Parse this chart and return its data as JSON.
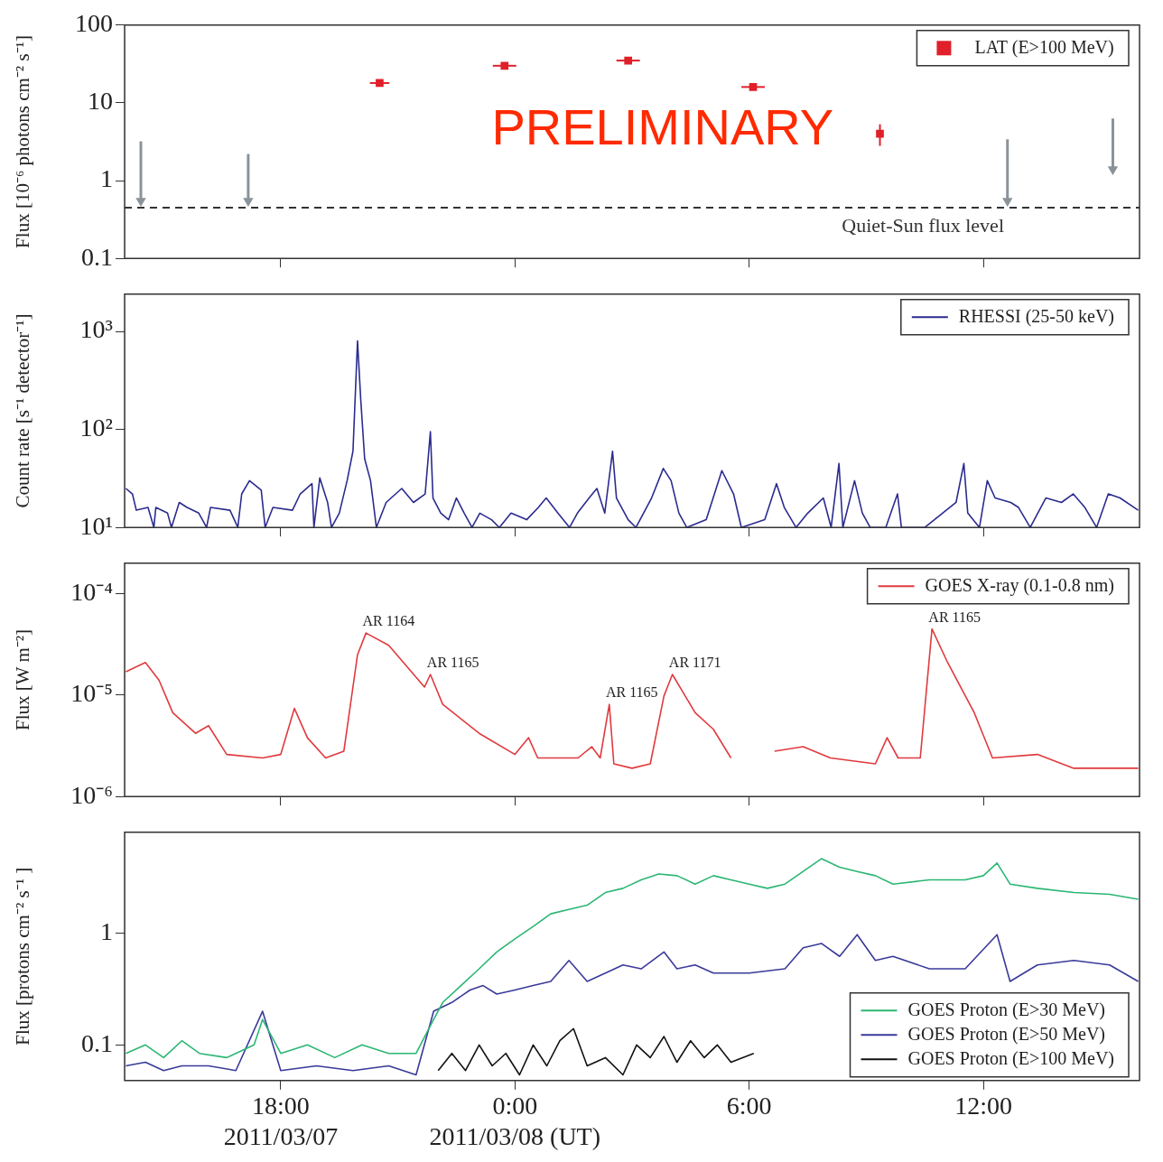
{
  "chart_data": [
    {
      "type": "scatter",
      "ylabel": "Flux [10⁻⁶ photons cm⁻² s⁻¹]",
      "log": "y",
      "xlim": [
        "2011-03-07T14:00",
        "2011-03-08T16:00"
      ],
      "xticks": [
        {
          "value": "2011-03-07T18:00",
          "label": null
        },
        {
          "value": "2011-03-08T00:00",
          "label": null
        },
        {
          "value": "2011-03-08T06:00",
          "label": null
        },
        {
          "value": "2011-03-08T12:00",
          "label": null
        }
      ],
      "ylim": [
        0.1,
        100
      ],
      "yticks": [
        0.1,
        1,
        10,
        100
      ],
      "tick_labels": "y",
      "marker": "square",
      "legend": "top right",
      "annotations": [
        "PRELIMINARY"
      ],
      "ref_lines": [
        {
          "axis": "y",
          "value": 0.45,
          "label": "Quiet-Sun flux level",
          "color": "#333333",
          "line_style": "dashed"
        }
      ],
      "series": [
        {
          "name": "LAT (E>100 MeV)",
          "color": "#e0202a",
          "x": [
            "2011-03-07T20:32",
            "2011-03-07T23:44",
            "2011-03-08T02:54",
            "2011-03-08T06:06",
            "2011-03-08T09:21"
          ],
          "values": [
            18,
            30,
            35,
            16,
            4
          ],
          "xerrors": [
            0.0104,
            0.0125,
            0.0125,
            0.0125,
            null
          ],
          "errors": [
            null,
            null,
            null,
            null,
            [
              2.8,
              5.3
            ]
          ]
        },
        {
          "color": "#8a9399",
          "marker": "triangle",
          "x": [
            "2011-03-07T14:25",
            "2011-03-07T17:10",
            "2011-03-08T12:37",
            "2011-03-08T15:19"
          ],
          "values": [
            0.55,
            0.55,
            0.55,
            1.4
          ],
          "errors": [
            [
              0.55,
              3.2
            ],
            [
              0.55,
              2.2
            ],
            [
              0.55,
              3.4
            ],
            [
              1.4,
              6.3
            ]
          ]
        }
      ]
    },
    {
      "type": "line",
      "ylabel": "Count rate [s⁻¹ detector⁻¹]",
      "log": "y",
      "xlim": [
        "2011-03-07T14:00",
        "2011-03-08T16:00"
      ],
      "xticks": [
        {
          "value": "2011-03-07T18:00",
          "label": null
        },
        {
          "value": "2011-03-08T00:00",
          "label": null
        },
        {
          "value": "2011-03-08T06:00",
          "label": null
        },
        {
          "value": "2011-03-08T12:00",
          "label": null
        }
      ],
      "ylim": [
        10,
        2400
      ],
      "yticks": [
        {
          "value": 10,
          "label": "10¹"
        },
        {
          "value": 100,
          "label": "10²"
        },
        {
          "value": 1000,
          "label": "10³"
        }
      ],
      "tick_labels": "y",
      "marker": "none",
      "line_style": "solid",
      "legend": "top right",
      "series": [
        {
          "name": "RHESSI (25-50 keV)",
          "color": "#2b2b8f",
          "x": [
            "2011-03-07T14:02",
            "2011-03-07T14:12",
            "2011-03-07T14:18",
            "2011-03-07T14:36",
            "2011-03-07T14:45",
            "2011-03-07T14:48",
            "2011-03-07T15:06",
            "2011-03-07T15:12",
            "2011-03-07T15:24",
            "2011-03-07T15:36",
            "2011-03-07T15:54",
            "2011-03-07T16:06",
            "2011-03-07T16:12",
            "2011-03-07T16:42",
            "2011-03-07T16:54",
            "2011-03-07T17:00",
            "2011-03-07T17:12",
            "2011-03-07T17:30",
            "2011-03-07T17:36",
            "2011-03-07T17:48",
            "2011-03-07T18:18",
            "2011-03-07T18:30",
            "2011-03-07T18:48",
            "2011-03-07T18:51",
            "2011-03-07T19:00",
            "2011-03-07T19:12",
            "2011-03-07T19:18",
            "2011-03-07T19:30",
            "2011-03-07T19:42",
            "2011-03-07T19:51",
            "2011-03-07T19:58",
            "2011-03-07T20:03",
            "2011-03-07T20:09",
            "2011-03-07T20:18",
            "2011-03-07T20:27",
            "2011-03-07T20:42",
            "2011-03-07T21:06",
            "2011-03-07T21:24",
            "2011-03-07T21:42",
            "2011-03-07T21:50",
            "2011-03-07T21:54",
            "2011-03-07T22:06",
            "2011-03-07T22:18",
            "2011-03-07T22:30",
            "2011-03-07T22:42",
            "2011-03-07T22:54",
            "2011-03-07T23:06",
            "2011-03-07T23:24",
            "2011-03-07T23:36",
            "2011-03-07T23:54",
            "2011-03-08T00:18",
            "2011-03-08T00:36",
            "2011-03-08T00:48",
            "2011-03-08T01:06",
            "2011-03-08T01:24",
            "2011-03-08T01:36",
            "2011-03-08T01:54",
            "2011-03-08T02:06",
            "2011-03-08T02:18",
            "2011-03-08T02:30",
            "2011-03-08T02:36",
            "2011-03-08T02:54",
            "2011-03-08T03:06",
            "2011-03-08T03:30",
            "2011-03-08T03:48",
            "2011-03-08T04:00",
            "2011-03-08T04:12",
            "2011-03-08T04:24",
            "2011-03-08T04:54",
            "2011-03-08T05:18",
            "2011-03-08T05:36",
            "2011-03-08T05:48",
            "2011-03-08T06:24",
            "2011-03-08T06:42",
            "2011-03-08T06:54",
            "2011-03-08T07:12",
            "2011-03-08T07:30",
            "2011-03-08T07:54",
            "2011-03-08T08:06",
            "2011-03-08T08:18",
            "2011-03-08T08:24",
            "2011-03-08T08:42",
            "2011-03-08T08:54",
            "2011-03-08T09:06",
            "2011-03-08T09:30",
            "2011-03-08T09:48",
            "2011-03-08T09:54",
            "2011-03-08T10:30",
            "2011-03-08T11:18",
            "2011-03-08T11:30",
            "2011-03-08T11:36",
            "2011-03-08T11:54",
            "2011-03-08T12:06",
            "2011-03-08T12:18",
            "2011-03-08T12:42",
            "2011-03-08T12:54",
            "2011-03-08T13:12",
            "2011-03-08T13:36",
            "2011-03-08T14:00",
            "2011-03-08T14:18",
            "2011-03-08T14:36",
            "2011-03-08T14:54",
            "2011-03-08T15:12",
            "2011-03-08T15:30",
            "2011-03-08T15:58"
          ],
          "values": [
            25,
            22,
            15,
            16,
            10,
            16,
            14,
            10,
            18,
            16,
            14,
            10,
            16,
            15,
            10,
            22,
            30,
            24,
            10,
            16,
            15,
            22,
            28,
            10,
            32,
            18,
            10,
            14,
            30,
            60,
            800,
            200,
            50,
            30,
            10,
            18,
            25,
            18,
            22,
            95,
            20,
            14,
            12,
            20,
            14,
            10,
            14,
            12,
            10,
            14,
            12,
            16,
            20,
            14,
            10,
            14,
            20,
            25,
            14,
            60,
            20,
            12,
            10,
            20,
            40,
            30,
            14,
            10,
            12,
            38,
            22,
            10,
            12,
            28,
            16,
            10,
            14,
            20,
            10,
            45,
            10,
            30,
            14,
            10,
            10,
            22,
            10,
            10,
            18,
            45,
            14,
            10,
            30,
            20,
            18,
            16,
            10,
            20,
            18,
            22,
            16,
            10,
            22,
            20,
            15
          ]
        }
      ]
    },
    {
      "type": "line",
      "ylabel": "Flux [W m⁻²]",
      "log": "y",
      "xlim": [
        "2011-03-07T14:00",
        "2011-03-08T16:00"
      ],
      "xticks": [
        {
          "value": "2011-03-07T18:00",
          "label": null
        },
        {
          "value": "2011-03-08T00:00",
          "label": null
        },
        {
          "value": "2011-03-08T06:00",
          "label": null
        },
        {
          "value": "2011-03-08T12:00",
          "label": null
        }
      ],
      "ylim": [
        1e-06,
        0.0002
      ],
      "yticks": [
        {
          "value": 1e-06,
          "label": "10⁻⁶"
        },
        {
          "value": 1e-05,
          "label": "10⁻⁵"
        },
        {
          "value": 0.0001,
          "label": "10⁻⁴"
        }
      ],
      "tick_labels": "y",
      "marker": "none",
      "line_style": "solid",
      "legend": "top right",
      "annotations": [
        {
          "text": "AR 1164",
          "x": "2011-03-07T20:11",
          "y": 4.1e-05
        },
        {
          "text": "AR 1165",
          "x": "2011-03-07T21:50",
          "y": 1.6e-05
        },
        {
          "text": "AR 1165",
          "x": "2011-03-08T02:25",
          "y": 8.1e-06
        },
        {
          "text": "AR 1171",
          "x": "2011-03-08T04:02",
          "y": 1.6e-05
        },
        {
          "text": "AR 1165",
          "x": "2011-03-08T10:41",
          "y": 4.5e-05
        }
      ],
      "series": [
        {
          "name": "GOES X-ray (0.1-0.8 nm)",
          "color": "#e03a3e",
          "x": [
            "2011-03-07T14:02",
            "2011-03-07T14:32",
            "2011-03-07T14:53",
            "2011-03-07T15:14",
            "2011-03-07T15:49",
            "2011-03-07T16:09",
            "2011-03-07T16:37",
            "2011-03-07T17:32",
            "2011-03-07T18:00",
            "2011-03-07T18:21",
            "2011-03-07T18:41",
            "2011-03-07T19:09",
            "2011-03-07T19:37",
            "2011-03-07T19:58",
            "2011-03-07T20:11",
            "2011-03-07T20:46",
            "2011-03-07T21:41",
            "2011-03-07T21:50",
            "2011-03-07T22:09",
            "2011-03-07T23:05",
            "2011-03-08T00:00",
            "2011-03-08T00:21",
            "2011-03-08T00:35",
            "2011-03-08T01:37",
            "2011-03-08T01:58",
            "2011-03-08T02:11",
            "2011-03-08T02:25",
            "2011-03-08T02:32",
            "2011-03-08T03:00",
            "2011-03-08T03:28",
            "2011-03-08T03:49",
            "2011-03-08T04:02",
            "2011-03-08T04:37",
            "2011-03-08T05:05",
            "2011-03-08T05:32",
            "2011-03-08T06:06",
            "2011-03-08T06:39",
            "2011-03-08T07:23",
            "2011-03-08T08:05",
            "2011-03-08T09:14",
            "2011-03-08T09:32",
            "2011-03-08T09:49",
            "2011-03-08T10:23",
            "2011-03-08T10:41",
            "2011-03-08T11:05",
            "2011-03-08T11:46",
            "2011-03-08T12:14",
            "2011-03-08T13:23",
            "2011-03-08T14:19",
            "2011-03-08T15:41",
            "2011-03-08T15:58"
          ],
          "values": [
            1.7e-05,
            2.1e-05,
            1.4e-05,
            6.7e-06,
            4.2e-06,
            5e-06,
            2.6e-06,
            2.4e-06,
            2.6e-06,
            7.4e-06,
            3.8e-06,
            2.4e-06,
            2.8e-06,
            2.5e-05,
            4.1e-05,
            3.1e-05,
            1.2e-05,
            1.6e-05,
            8.1e-06,
            4.2e-06,
            2.6e-06,
            3.8e-06,
            2.4e-06,
            2.4e-06,
            3.1e-06,
            2.4e-06,
            8.1e-06,
            2.1e-06,
            1.9e-06,
            2.1e-06,
            9.8e-06,
            1.6e-05,
            6.7e-06,
            4.6e-06,
            2.4e-06,
            null,
            2.8e-06,
            3.1e-06,
            2.4e-06,
            2.1e-06,
            3.8e-06,
            2.4e-06,
            2.4e-06,
            4.5e-05,
            2.1e-05,
            6.7e-06,
            2.4e-06,
            2.6e-06,
            1.9e-06,
            1.9e-06,
            1.9e-06
          ]
        }
      ]
    },
    {
      "type": "line",
      "ylabel": "Flux [protons cm⁻² s⁻¹ ]",
      "log": "y",
      "xlim": [
        "2011-03-07T14:00",
        "2011-03-08T16:00"
      ],
      "xticks": [
        {
          "value": "2011-03-07T18:00",
          "label": "18:00\n2011/03/07"
        },
        {
          "value": "2011-03-08T00:00",
          "label": "0:00\n2011/03/08 (UT)"
        },
        {
          "value": "2011-03-08T06:00",
          "label": "6:00"
        },
        {
          "value": "2011-03-08T12:00",
          "label": "12:00"
        }
      ],
      "ylim": [
        0.048,
        8
      ],
      "yticks": [
        0.1,
        1
      ],
      "marker": "none",
      "line_style": "solid",
      "legend": "bottom right",
      "series": [
        {
          "name": "GOES Proton (E>30 MeV)",
          "color": "#2bb673",
          "x": [
            "2011-03-07T14:02",
            "2011-03-07T14:32",
            "2011-03-07T15:00",
            "2011-03-07T15:28",
            "2011-03-07T15:55",
            "2011-03-07T16:37",
            "2011-03-07T17:19",
            "2011-03-07T17:32",
            "2011-03-07T18:00",
            "2011-03-07T18:41",
            "2011-03-07T19:23",
            "2011-03-07T20:05",
            "2011-03-07T20:46",
            "2011-03-07T21:28",
            "2011-03-07T21:55",
            "2011-03-07T22:09",
            "2011-03-07T22:37",
            "2011-03-07T23:05",
            "2011-03-07T23:32",
            "2011-03-08T00:00",
            "2011-03-08T00:28",
            "2011-03-08T00:55",
            "2011-03-08T01:23",
            "2011-03-08T01:51",
            "2011-03-08T02:19",
            "2011-03-08T02:46",
            "2011-03-08T03:14",
            "2011-03-08T03:41",
            "2011-03-08T04:09",
            "2011-03-08T04:37",
            "2011-03-08T05:05",
            "2011-03-08T05:32",
            "2011-03-08T06:00",
            "2011-03-08T06:28",
            "2011-03-08T06:55",
            "2011-03-08T07:23",
            "2011-03-08T07:51",
            "2011-03-08T08:19",
            "2011-03-08T08:46",
            "2011-03-08T09:14",
            "2011-03-08T09:41",
            "2011-03-08T10:37",
            "2011-03-08T11:32",
            "2011-03-08T12:00",
            "2011-03-08T12:21",
            "2011-03-08T12:41",
            "2011-03-08T13:23",
            "2011-03-08T14:19",
            "2011-03-08T15:14",
            "2011-03-08T15:58"
          ],
          "values": [
            0.084,
            0.1,
            0.077,
            0.109,
            0.084,
            0.077,
            0.1,
            0.169,
            0.084,
            0.1,
            0.077,
            0.1,
            0.084,
            0.084,
            0.169,
            0.24,
            0.34,
            0.48,
            0.68,
            0.89,
            1.15,
            1.49,
            1.63,
            1.78,
            2.31,
            2.52,
            3.0,
            3.39,
            3.27,
            2.75,
            3.27,
            3.0,
            2.75,
            2.52,
            2.75,
            3.57,
            4.64,
            3.9,
            3.57,
            3.27,
            2.75,
            3.0,
            3.0,
            3.27,
            4.25,
            2.75,
            2.52,
            2.31,
            2.23,
            2.01
          ]
        },
        {
          "name": "GOES Proton (E>50 MeV)",
          "color": "#3a3a9a",
          "x": [
            "2011-03-07T14:02",
            "2011-03-07T14:32",
            "2011-03-07T15:00",
            "2011-03-07T15:28",
            "2011-03-07T16:09",
            "2011-03-07T16:51",
            "2011-03-07T17:32",
            "2011-03-07T18:00",
            "2011-03-07T18:55",
            "2011-03-07T19:51",
            "2011-03-07T20:46",
            "2011-03-07T21:28",
            "2011-03-07T21:55",
            "2011-03-07T22:23",
            "2011-03-07T22:51",
            "2011-03-07T23:11",
            "2011-03-07T23:32",
            "2011-03-08T00:00",
            "2011-03-08T00:28",
            "2011-03-08T00:55",
            "2011-03-08T01:23",
            "2011-03-08T01:51",
            "2011-03-08T02:19",
            "2011-03-08T02:46",
            "2011-03-08T03:14",
            "2011-03-08T03:49",
            "2011-03-08T04:09",
            "2011-03-08T04:37",
            "2011-03-08T05:05",
            "2011-03-08T06:00",
            "2011-03-08T06:55",
            "2011-03-08T07:23",
            "2011-03-08T07:51",
            "2011-03-08T08:19",
            "2011-03-08T08:46",
            "2011-03-08T09:14",
            "2011-03-08T09:41",
            "2011-03-08T10:37",
            "2011-03-08T11:32",
            "2011-03-08T12:21",
            "2011-03-08T12:41",
            "2011-03-08T13:23",
            "2011-03-08T14:19",
            "2011-03-08T15:14",
            "2011-03-08T15:58"
          ],
          "values": [
            0.065,
            0.07,
            0.059,
            0.065,
            0.065,
            0.059,
            0.2,
            0.059,
            0.065,
            0.059,
            0.065,
            0.054,
            0.2,
            0.24,
            0.31,
            0.34,
            0.285,
            0.31,
            0.34,
            0.37,
            0.57,
            0.37,
            0.44,
            0.52,
            0.48,
            0.68,
            0.48,
            0.52,
            0.44,
            0.44,
            0.48,
            0.74,
            0.81,
            0.62,
            0.97,
            0.57,
            0.62,
            0.48,
            0.48,
            0.97,
            0.37,
            0.52,
            0.57,
            0.52,
            0.37
          ]
        },
        {
          "name": "GOES Proton (E>100 MeV)",
          "color": "#111111",
          "x": [
            "2011-03-07T22:02",
            "2011-03-07T22:23",
            "2011-03-07T22:44",
            "2011-03-07T23:05",
            "2011-03-07T23:25",
            "2011-03-07T23:46",
            "2011-03-08T00:07",
            "2011-03-08T00:28",
            "2011-03-08T00:49",
            "2011-03-08T01:09",
            "2011-03-08T01:30",
            "2011-03-08T01:51",
            "2011-03-08T02:19",
            "2011-03-08T02:46",
            "2011-03-08T03:07",
            "2011-03-08T03:28",
            "2011-03-08T03:49",
            "2011-03-08T04:09",
            "2011-03-08T04:30",
            "2011-03-08T04:51",
            "2011-03-08T05:11",
            "2011-03-08T05:32",
            "2011-03-08T06:07"
          ],
          "values": [
            0.059,
            0.084,
            0.059,
            0.1,
            0.065,
            0.084,
            0.054,
            0.1,
            0.065,
            0.109,
            0.14,
            0.065,
            0.077,
            0.054,
            0.1,
            0.077,
            0.119,
            0.07,
            0.109,
            0.077,
            0.1,
            0.07,
            0.084
          ]
        }
      ]
    }
  ]
}
